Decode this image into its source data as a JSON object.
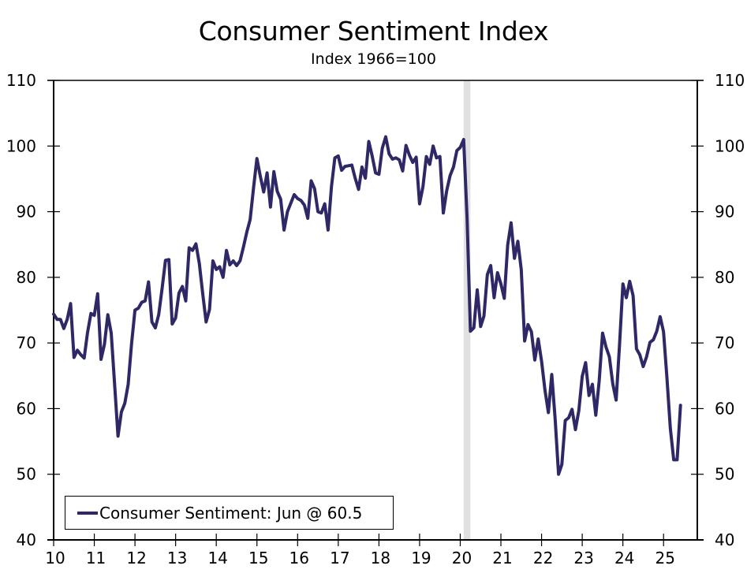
{
  "chart_data": {
    "type": "line",
    "title": "Consumer Sentiment Index",
    "subtitle": "Index 1966=100",
    "xlabel": "",
    "ylabel": "",
    "ylim": [
      40,
      110
    ],
    "yticks": [
      40,
      50,
      60,
      70,
      80,
      90,
      100,
      110
    ],
    "xlim": [
      2010.0,
      2025.83
    ],
    "xticks": [
      2010,
      2011,
      2012,
      2013,
      2014,
      2015,
      2016,
      2017,
      2018,
      2019,
      2020,
      2021,
      2022,
      2023,
      2024,
      2025
    ],
    "xtick_labels": [
      "10",
      "11",
      "12",
      "13",
      "14",
      "15",
      "16",
      "17",
      "18",
      "19",
      "20",
      "21",
      "22",
      "23",
      "24",
      "25"
    ],
    "grid": false,
    "legend_position": "bottom-left",
    "recession_shading": [
      {
        "start": 2020.083,
        "end": 2020.25,
        "color": "#e0e0e0"
      }
    ],
    "series": [
      {
        "name": "Consumer Sentiment: Jun @ 60.5",
        "color": "#2e2966",
        "start": "2010-01",
        "frequency": "monthly",
        "values": [
          74.4,
          73.6,
          73.6,
          72.2,
          73.6,
          76.0,
          67.8,
          68.9,
          68.2,
          67.7,
          71.6,
          74.5,
          74.2,
          77.5,
          67.5,
          69.8,
          74.3,
          71.5,
          63.7,
          55.8,
          59.5,
          60.8,
          63.7,
          69.9,
          75.0,
          75.3,
          76.2,
          76.4,
          79.3,
          73.2,
          72.3,
          74.3,
          78.3,
          82.6,
          82.7,
          72.9,
          73.8,
          77.6,
          78.6,
          76.4,
          84.5,
          84.1,
          85.1,
          82.1,
          77.5,
          73.2,
          75.1,
          82.5,
          81.2,
          81.6,
          80.0,
          84.1,
          81.9,
          82.5,
          81.8,
          82.5,
          84.6,
          86.9,
          88.8,
          93.6,
          98.1,
          95.4,
          93.0,
          95.9,
          90.7,
          96.1,
          93.1,
          91.9,
          87.2,
          90.0,
          91.3,
          92.6,
          92.0,
          91.7,
          91.0,
          89.0,
          94.7,
          93.5,
          90.0,
          89.8,
          91.2,
          87.2,
          93.8,
          98.2,
          98.5,
          96.3,
          96.9,
          97.0,
          97.1,
          95.1,
          93.4,
          96.8,
          95.1,
          100.7,
          98.5,
          95.9,
          95.7,
          99.7,
          101.4,
          98.8,
          98.0,
          98.2,
          97.9,
          96.2,
          100.1,
          98.6,
          97.5,
          98.3,
          91.2,
          93.8,
          98.4,
          97.2,
          100.0,
          98.2,
          98.4,
          89.8,
          93.2,
          95.5,
          96.8,
          99.3,
          99.8,
          101.0,
          89.1,
          71.8,
          72.3,
          78.1,
          72.5,
          74.1,
          80.4,
          81.8,
          76.9,
          80.7,
          79.0,
          76.8,
          84.9,
          88.3,
          82.9,
          85.5,
          81.2,
          70.3,
          72.8,
          71.7,
          67.4,
          70.6,
          67.2,
          62.8,
          59.4,
          65.2,
          58.4,
          50.0,
          51.5,
          58.2,
          58.6,
          59.9,
          56.8,
          59.7,
          64.9,
          67.0,
          62.0,
          63.7,
          59.0,
          64.2,
          71.5,
          69.4,
          67.9,
          63.8,
          61.3,
          69.7,
          79.0,
          76.9,
          79.4,
          77.2,
          69.1,
          68.2,
          66.4,
          67.9,
          70.1,
          70.5,
          71.8,
          74.0,
          71.7,
          64.7,
          57.0,
          52.2,
          52.2,
          60.5
        ]
      }
    ]
  }
}
